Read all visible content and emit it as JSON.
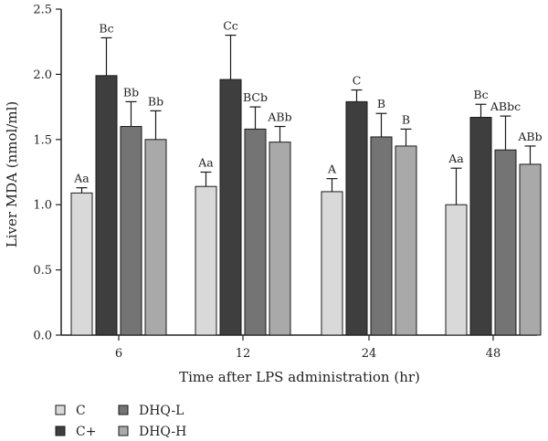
{
  "chart_data": {
    "type": "bar",
    "title": "",
    "xlabel": "Time after LPS administration (hr)",
    "ylabel": "Liver MDA (nmol/ml)",
    "ylim": [
      0,
      2.5
    ],
    "yticks": [
      0.0,
      0.5,
      1.0,
      1.5,
      2.0,
      2.5
    ],
    "ytick_labels": [
      "0.0",
      "0.5",
      "1.0",
      "1.5",
      "2.0",
      "2.5"
    ],
    "categories": [
      "6",
      "12",
      "24",
      "48"
    ],
    "series": [
      {
        "name": "C",
        "color": "#d9d9d9",
        "values": [
          1.09,
          1.14,
          1.1,
          1.0
        ],
        "errors": [
          0.04,
          0.11,
          0.1,
          0.28
        ],
        "labels": [
          "Aa",
          "Aa",
          "A",
          "Aa"
        ]
      },
      {
        "name": "C+",
        "color": "#3e3e3e",
        "values": [
          1.99,
          1.96,
          1.79,
          1.67
        ],
        "errors": [
          0.29,
          0.34,
          0.09,
          0.1
        ],
        "labels": [
          "Bc",
          "Cc",
          "C",
          "Bc"
        ]
      },
      {
        "name": "DHQ-L",
        "color": "#747474",
        "values": [
          1.6,
          1.58,
          1.52,
          1.42
        ],
        "errors": [
          0.19,
          0.17,
          0.18,
          0.26
        ],
        "labels": [
          "Bb",
          "BCb",
          "B",
          "ABbc"
        ]
      },
      {
        "name": "DHQ-H",
        "color": "#a9a9a9",
        "values": [
          1.5,
          1.48,
          1.45,
          1.31
        ],
        "errors": [
          0.22,
          0.12,
          0.13,
          0.14
        ],
        "labels": [
          "Bb",
          "ABb",
          "B",
          "ABb"
        ]
      }
    ],
    "legend": {
      "position": "bottom-left",
      "entries": [
        "C",
        "C+",
        "DHQ-L",
        "DHQ-H"
      ]
    }
  }
}
